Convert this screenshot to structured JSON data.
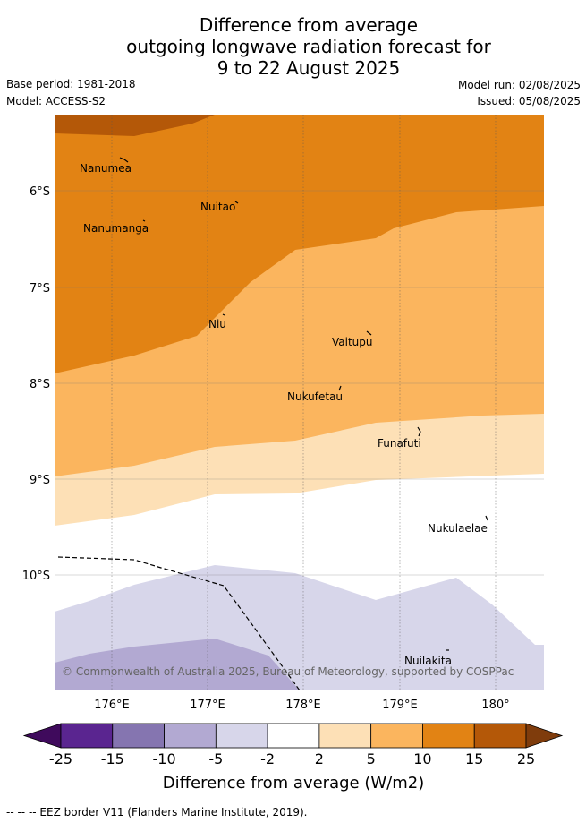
{
  "title": {
    "line1": "Difference from average",
    "line2": "outgoing longwave radiation forecast for",
    "line3": "9 to 22 August 2025"
  },
  "meta": {
    "base_period": "Base period: 1981-2018",
    "model": "Model: ACCESS-S2",
    "model_run": "Model run: 02/08/2025",
    "issued": "Issued: 05/08/2025"
  },
  "map": {
    "lat_labels": [
      "6°S",
      "7°S",
      "8°S",
      "9°S",
      "10°S"
    ],
    "lon_labels": [
      "176°E",
      "177°E",
      "178°E",
      "179°E",
      "180°"
    ],
    "places": [
      "Nanumea",
      "Nuitao",
      "Nanumanga",
      "Niu",
      "Vaitupu",
      "Nukufetau",
      "Funafuti",
      "Nukulaelae",
      "Nuilakita"
    ],
    "copyright": "© Commonwealth of Australia 2025, Bureau of Meteorology, supported by COSPPac"
  },
  "colorbar": {
    "ticks": [
      "-25",
      "-15",
      "-10",
      "-5",
      "-2",
      "2",
      "5",
      "10",
      "15",
      "25"
    ],
    "colors": [
      "#3f0a5c",
      "#5a2590",
      "#8575b0",
      "#b2a9d2",
      "#d7d6ea",
      "#ffffff",
      "#fde0b6",
      "#fbb55e",
      "#e28314",
      "#b45808",
      "#7f3c0c"
    ],
    "label": "Difference from average (W/m2)"
  },
  "legend": {
    "eez": "-- -- -- EEZ border V11 (Flanders Marine Institute, 2019)."
  }
}
